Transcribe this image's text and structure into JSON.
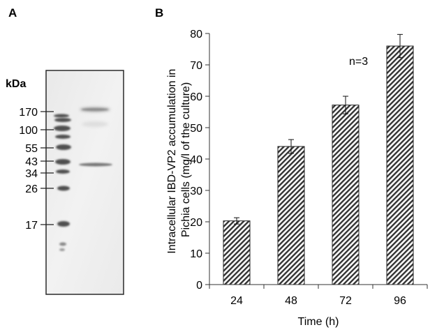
{
  "panels": {
    "a": {
      "label": "A"
    },
    "b": {
      "label": "B"
    }
  },
  "gel": {
    "unit_label": "kDa",
    "markers": [
      "170",
      "100",
      "55",
      "43",
      "34",
      "26",
      "17"
    ]
  },
  "chart_data": {
    "type": "bar",
    "title": "",
    "categories": [
      "24",
      "48",
      "72",
      "96"
    ],
    "values": [
      20.3,
      44.0,
      57.2,
      76.0
    ],
    "errors": [
      1.0,
      2.2,
      2.8,
      3.7
    ],
    "xlabel": "Time (h)",
    "ylabel_lines": [
      "Intracellular IBD-VP2 accumulation in",
      "Pichia cells (mg/l of the culture)"
    ],
    "ylim": [
      0,
      80
    ],
    "yticks": [
      "0",
      "10",
      "20",
      "30",
      "40",
      "50",
      "60",
      "70",
      "80"
    ],
    "grid": false,
    "legend": "none",
    "annotation": "n=3",
    "bar_fill": "hatched",
    "bar_color": "#333333"
  }
}
